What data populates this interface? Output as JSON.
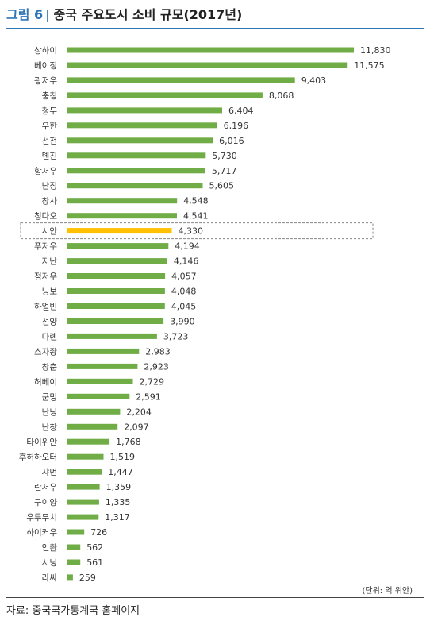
{
  "figure": {
    "number": "그림 6",
    "separator": "|",
    "title": "중국 주요도시 소비 규모(2017년)",
    "unit": "(단위: 억 위안)",
    "source": "자료: 중국국가통계국 홈페이지"
  },
  "colors": {
    "bar": "#70ad47",
    "highlight": "#ffc000",
    "title_accent": "#2e75b6"
  },
  "chart_data": {
    "type": "bar",
    "orientation": "horizontal",
    "categories": [
      "상하이",
      "베이징",
      "광저우",
      "충칭",
      "청두",
      "우한",
      "선전",
      "톈진",
      "항저우",
      "난징",
      "창사",
      "칭다오",
      "시안",
      "푸저우",
      "지난",
      "정저우",
      "닝보",
      "하얼빈",
      "선양",
      "다롄",
      "스자좡",
      "창춘",
      "허베이",
      "쿤밍",
      "난닝",
      "난창",
      "타이위안",
      "후허하오터",
      "샤먼",
      "란저우",
      "구이양",
      "우루무치",
      "하이커우",
      "인촨",
      "시닝",
      "라싸"
    ],
    "values": [
      11830,
      11575,
      9403,
      8068,
      6404,
      6196,
      6016,
      5730,
      5717,
      5605,
      4548,
      4541,
      4330,
      4194,
      4146,
      4057,
      4048,
      4045,
      3990,
      3723,
      2983,
      2923,
      2729,
      2591,
      2204,
      2097,
      1768,
      1519,
      1447,
      1359,
      1335,
      1317,
      726,
      562,
      561,
      259
    ],
    "value_labels": [
      "11,830",
      "11,575",
      "9,403",
      "8,068",
      "6,404",
      "6,196",
      "6,016",
      "5,730",
      "5,717",
      "5,605",
      "4,548",
      "4,541",
      "4,330",
      "4,194",
      "4,146",
      "4,057",
      "4,048",
      "4,045",
      "3,990",
      "3,723",
      "2,983",
      "2,923",
      "2,729",
      "2,591",
      "2,204",
      "2,097",
      "1,768",
      "1,519",
      "1,447",
      "1,359",
      "1,335",
      "1,317",
      "726",
      "562",
      "561",
      "259"
    ],
    "highlight": "시안",
    "xlim": [
      0,
      11830
    ],
    "grid": false,
    "legend": "none"
  }
}
